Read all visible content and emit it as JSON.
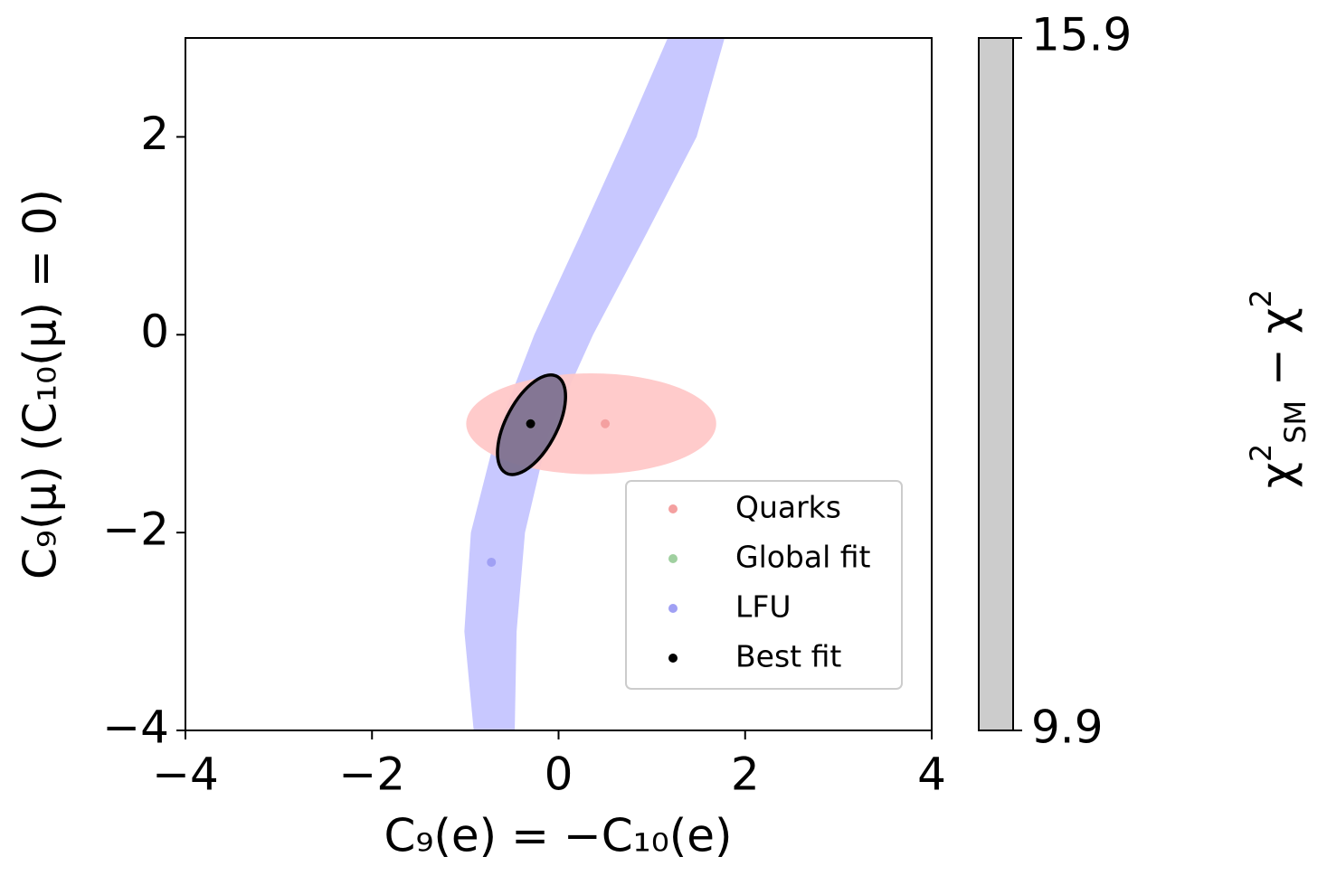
{
  "chart_data": {
    "type": "scatter",
    "xlabel": "C₉(e) = −C₁₀(e)",
    "ylabel": "C₉(μ) (C₁₀(μ) = 0)",
    "xlim": [
      -4,
      4
    ],
    "ylim": [
      -4,
      3
    ],
    "xticks": [
      {
        "value": -4,
        "label": "−4"
      },
      {
        "value": -2,
        "label": "−2"
      },
      0,
      2,
      4
    ],
    "yticks": [
      {
        "value": -4,
        "label": "−4"
      },
      {
        "value": -2,
        "label": "−2"
      },
      0,
      2
    ],
    "legend": "lower right",
    "series": [
      {
        "name": "Quarks",
        "color": "#f4a0a0",
        "x": [
          0.5
        ],
        "values": [
          -0.9
        ]
      },
      {
        "name": "Global fit",
        "color": "#a0d0a0",
        "x": [
          -0.3
        ],
        "values": [
          -0.9
        ]
      },
      {
        "name": "LFU",
        "color": "#a0a0f4",
        "x": [
          -0.72
        ],
        "values": [
          -2.3
        ]
      },
      {
        "name": "Best fit",
        "color": "#000000",
        "x": [
          -0.3
        ],
        "values": [
          -0.9
        ]
      }
    ],
    "bands": [
      {
        "color": "#c8c8ff",
        "y": [
          -4,
          -3,
          -2,
          -1,
          0,
          1,
          2,
          3
        ],
        "x_left": [
          -0.91,
          -1.01,
          -0.94,
          -0.67,
          -0.26,
          0.23,
          0.71,
          1.17
        ],
        "x_right": [
          -0.47,
          -0.45,
          -0.36,
          -0.11,
          0.37,
          0.93,
          1.48,
          1.78
        ]
      }
    ],
    "ellipses": [
      {
        "color": "#ffc8c8",
        "edge": "none",
        "cx": 0.35,
        "cy": -0.9,
        "rx": 1.34,
        "ry": 0.51,
        "angle": 0
      },
      {
        "color": "#7d7290",
        "edge": "#000000",
        "cx": -0.29,
        "cy": -0.91,
        "rx": 0.56,
        "ry": 0.27,
        "angle": 60
      }
    ],
    "colorbar": {
      "lim": [
        9.9,
        15.9
      ],
      "ticks": [
        9.9,
        15.9
      ],
      "color": "#cccccc",
      "label_parts": [
        "χ",
        "2",
        "SM",
        " − χ",
        "2"
      ]
    }
  }
}
